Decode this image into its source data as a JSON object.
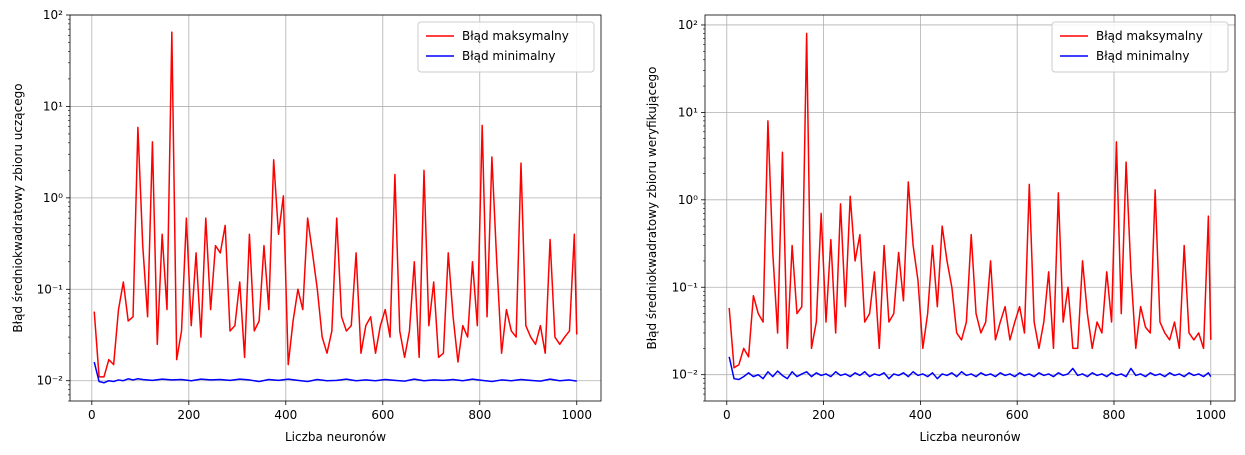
{
  "chart_data": [
    {
      "type": "line",
      "xlabel": "Liczba neuronów",
      "ylabel": "Błąd średniokwadratowy zbioru uczącego",
      "yscale": "log",
      "xlim": [
        -45,
        1050
      ],
      "ylim": [
        0.006,
        100
      ],
      "xticks": [
        0,
        200,
        400,
        600,
        800,
        1000
      ],
      "xtick_labels": [
        "0",
        "200",
        "400",
        "600",
        "800",
        "1000"
      ],
      "yticks": [
        0.01,
        0.1,
        1,
        10,
        100
      ],
      "ytick_labels": [
        "10⁻²",
        "10⁻¹",
        "10⁰",
        "10¹",
        "10²"
      ],
      "grid": true,
      "legend": "top-right",
      "series": [
        {
          "name": "Błąd maksymalny",
          "color": "#ff0000",
          "x": [
            5,
            15,
            25,
            35,
            45,
            55,
            65,
            75,
            85,
            95,
            105,
            115,
            125,
            135,
            145,
            155,
            165,
            175,
            185,
            195,
            205,
            215,
            225,
            235,
            245,
            255,
            265,
            275,
            285,
            295,
            305,
            315,
            325,
            335,
            345,
            355,
            365,
            375,
            385,
            395,
            405,
            415,
            425,
            435,
            445,
            455,
            465,
            475,
            485,
            495,
            505,
            515,
            525,
            535,
            545,
            555,
            565,
            575,
            585,
            595,
            605,
            615,
            625,
            635,
            645,
            655,
            665,
            675,
            685,
            695,
            705,
            715,
            725,
            735,
            745,
            755,
            765,
            775,
            785,
            795,
            805,
            815,
            825,
            835,
            845,
            855,
            865,
            875,
            885,
            895,
            905,
            915,
            925,
            935,
            945,
            955,
            965,
            975,
            985,
            995,
            1000
          ],
          "y": [
            0.057,
            0.011,
            0.011,
            0.017,
            0.015,
            0.06,
            0.12,
            0.045,
            0.05,
            5.9,
            0.3,
            0.05,
            4.1,
            0.025,
            0.4,
            0.06,
            65,
            0.017,
            0.035,
            0.6,
            0.04,
            0.25,
            0.03,
            0.6,
            0.06,
            0.3,
            0.25,
            0.5,
            0.035,
            0.04,
            0.12,
            0.018,
            0.4,
            0.035,
            0.045,
            0.3,
            0.06,
            2.6,
            0.4,
            1.05,
            0.015,
            0.045,
            0.1,
            0.06,
            0.6,
            0.25,
            0.1,
            0.03,
            0.02,
            0.035,
            0.6,
            0.05,
            0.035,
            0.04,
            0.25,
            0.02,
            0.04,
            0.05,
            0.02,
            0.04,
            0.06,
            0.03,
            1.8,
            0.035,
            0.018,
            0.035,
            0.2,
            0.018,
            2.0,
            0.04,
            0.12,
            0.018,
            0.02,
            0.25,
            0.05,
            0.016,
            0.04,
            0.03,
            0.2,
            0.04,
            6.2,
            0.05,
            2.8,
            0.2,
            0.02,
            0.06,
            0.035,
            0.03,
            2.4,
            0.04,
            0.03,
            0.025,
            0.04,
            0.02,
            0.35,
            0.03,
            0.025,
            0.03,
            0.035,
            0.4,
            0.032
          ]
        },
        {
          "name": "Błąd minimalny",
          "color": "#0000ff",
          "x": [
            5,
            15,
            25,
            35,
            45,
            55,
            65,
            75,
            85,
            95,
            105,
            125,
            145,
            165,
            185,
            205,
            225,
            245,
            265,
            285,
            305,
            325,
            345,
            365,
            385,
            405,
            425,
            445,
            465,
            485,
            505,
            525,
            545,
            565,
            585,
            605,
            625,
            645,
            665,
            685,
            705,
            725,
            745,
            765,
            785,
            805,
            825,
            845,
            865,
            885,
            905,
            925,
            945,
            965,
            985,
            1000
          ],
          "y": [
            0.016,
            0.0098,
            0.0095,
            0.01,
            0.0098,
            0.0102,
            0.01,
            0.0105,
            0.0102,
            0.0105,
            0.0103,
            0.0101,
            0.0104,
            0.0102,
            0.0103,
            0.01,
            0.0104,
            0.0102,
            0.0103,
            0.0101,
            0.0104,
            0.0102,
            0.0098,
            0.0103,
            0.0101,
            0.0104,
            0.0101,
            0.0098,
            0.0103,
            0.01,
            0.0101,
            0.0104,
            0.01,
            0.0102,
            0.01,
            0.0103,
            0.0101,
            0.0099,
            0.0104,
            0.01,
            0.0102,
            0.0101,
            0.0103,
            0.01,
            0.0104,
            0.0101,
            0.0098,
            0.0102,
            0.01,
            0.0103,
            0.0101,
            0.0099,
            0.0104,
            0.01,
            0.0102,
            0.0099
          ]
        }
      ]
    },
    {
      "type": "line",
      "xlabel": "Liczba neuronów",
      "ylabel": "Błąd średniokwadratowy zbioru weryfikującego",
      "yscale": "log",
      "xlim": [
        -45,
        1050
      ],
      "ylim": [
        0.005,
        130
      ],
      "xticks": [
        0,
        200,
        400,
        600,
        800,
        1000
      ],
      "xtick_labels": [
        "0",
        "200",
        "400",
        "600",
        "800",
        "1000"
      ],
      "yticks": [
        0.01,
        0.1,
        1,
        10,
        100
      ],
      "ytick_labels": [
        "10⁻²",
        "10⁻¹",
        "10⁰",
        "10¹",
        "10²"
      ],
      "grid": true,
      "legend": "top-right",
      "series": [
        {
          "name": "Błąd maksymalny",
          "color": "#ff0000",
          "x": [
            5,
            15,
            25,
            35,
            45,
            55,
            65,
            75,
            85,
            95,
            105,
            115,
            125,
            135,
            145,
            155,
            165,
            175,
            185,
            195,
            205,
            215,
            225,
            235,
            245,
            255,
            265,
            275,
            285,
            295,
            305,
            315,
            325,
            335,
            345,
            355,
            365,
            375,
            385,
            395,
            405,
            415,
            425,
            435,
            445,
            455,
            465,
            475,
            485,
            495,
            505,
            515,
            525,
            535,
            545,
            555,
            565,
            575,
            585,
            595,
            605,
            615,
            625,
            635,
            645,
            655,
            665,
            675,
            685,
            695,
            705,
            715,
            725,
            735,
            745,
            755,
            765,
            775,
            785,
            795,
            805,
            815,
            825,
            835,
            845,
            855,
            865,
            875,
            885,
            895,
            905,
            915,
            925,
            935,
            945,
            955,
            965,
            975,
            985,
            995,
            1000
          ],
          "y": [
            0.058,
            0.012,
            0.013,
            0.02,
            0.016,
            0.08,
            0.05,
            0.04,
            8.0,
            0.25,
            0.03,
            3.5,
            0.02,
            0.3,
            0.05,
            0.06,
            80,
            0.02,
            0.04,
            0.7,
            0.04,
            0.35,
            0.03,
            0.9,
            0.06,
            1.1,
            0.2,
            0.4,
            0.04,
            0.05,
            0.15,
            0.02,
            0.3,
            0.04,
            0.05,
            0.25,
            0.07,
            1.6,
            0.3,
            0.12,
            0.02,
            0.05,
            0.3,
            0.06,
            0.5,
            0.2,
            0.1,
            0.03,
            0.025,
            0.04,
            0.4,
            0.05,
            0.03,
            0.04,
            0.2,
            0.025,
            0.04,
            0.06,
            0.025,
            0.04,
            0.06,
            0.03,
            1.5,
            0.04,
            0.02,
            0.04,
            0.15,
            0.02,
            1.2,
            0.04,
            0.1,
            0.02,
            0.02,
            0.2,
            0.05,
            0.02,
            0.04,
            0.03,
            0.15,
            0.04,
            4.6,
            0.05,
            2.7,
            0.15,
            0.02,
            0.06,
            0.035,
            0.03,
            1.3,
            0.04,
            0.03,
            0.025,
            0.04,
            0.02,
            0.3,
            0.03,
            0.025,
            0.03,
            0.02,
            0.65,
            0.025
          ]
        },
        {
          "name": "Błąd minimalny",
          "color": "#0000ff",
          "x": [
            5,
            15,
            25,
            35,
            45,
            55,
            65,
            75,
            85,
            95,
            105,
            115,
            125,
            135,
            145,
            155,
            165,
            175,
            185,
            195,
            205,
            215,
            225,
            235,
            245,
            255,
            265,
            275,
            285,
            295,
            305,
            315,
            325,
            335,
            345,
            355,
            365,
            375,
            385,
            395,
            405,
            415,
            425,
            435,
            445,
            455,
            465,
            475,
            485,
            495,
            505,
            515,
            525,
            535,
            545,
            555,
            565,
            575,
            585,
            595,
            605,
            615,
            625,
            635,
            645,
            655,
            665,
            675,
            685,
            695,
            705,
            715,
            725,
            735,
            745,
            755,
            765,
            775,
            785,
            795,
            805,
            815,
            825,
            835,
            845,
            855,
            865,
            875,
            885,
            895,
            905,
            915,
            925,
            935,
            945,
            955,
            965,
            975,
            985,
            995,
            1000
          ],
          "y": [
            0.016,
            0.009,
            0.0088,
            0.0095,
            0.0105,
            0.0095,
            0.01,
            0.009,
            0.0108,
            0.0095,
            0.011,
            0.0098,
            0.009,
            0.0108,
            0.0095,
            0.0102,
            0.0108,
            0.0095,
            0.0105,
            0.0098,
            0.0102,
            0.0095,
            0.0108,
            0.0098,
            0.0102,
            0.0095,
            0.0105,
            0.0098,
            0.0108,
            0.0095,
            0.0102,
            0.0098,
            0.0105,
            0.009,
            0.0102,
            0.0098,
            0.0105,
            0.0095,
            0.0108,
            0.0098,
            0.0102,
            0.0095,
            0.0105,
            0.009,
            0.0102,
            0.0098,
            0.0105,
            0.0095,
            0.0108,
            0.0098,
            0.0102,
            0.0095,
            0.0105,
            0.0098,
            0.0102,
            0.0095,
            0.0105,
            0.0098,
            0.0102,
            0.0095,
            0.0105,
            0.0098,
            0.0102,
            0.0095,
            0.0105,
            0.0098,
            0.0102,
            0.0095,
            0.0105,
            0.0098,
            0.0102,
            0.0118,
            0.0098,
            0.0102,
            0.0095,
            0.0105,
            0.0098,
            0.0102,
            0.0095,
            0.0105,
            0.0098,
            0.0102,
            0.0095,
            0.0118,
            0.0098,
            0.0102,
            0.0095,
            0.0105,
            0.0098,
            0.0102,
            0.0095,
            0.0105,
            0.0098,
            0.0102,
            0.0095,
            0.0105,
            0.0098,
            0.0102,
            0.0095,
            0.0105,
            0.0095
          ]
        }
      ]
    }
  ]
}
